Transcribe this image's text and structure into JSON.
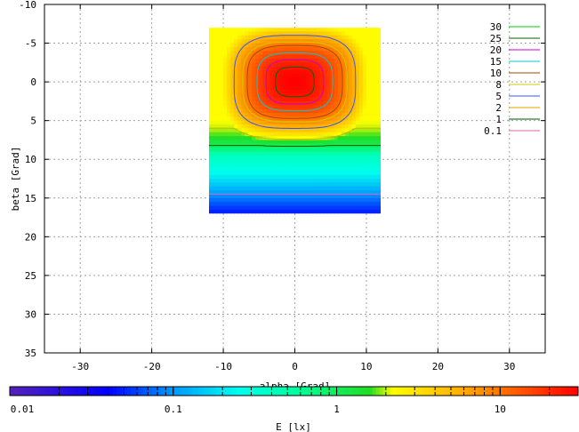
{
  "chart_data": {
    "type": "heatmap",
    "title": "",
    "xlabel": "alpha [Grad]",
    "ylabel": "beta [Grad]",
    "xlim": [
      -35,
      35
    ],
    "ylim": [
      35,
      -10
    ],
    "x_ticks": [
      -30,
      -20,
      -10,
      0,
      10,
      20,
      30
    ],
    "y_ticks": [
      -10,
      -5,
      0,
      5,
      10,
      15,
      20,
      25,
      30,
      35
    ],
    "grid": true,
    "legend_position": "top-right",
    "data_extent": {
      "alpha": [
        -12,
        12
      ],
      "beta": [
        -7,
        17
      ]
    },
    "peak": {
      "alpha": 0,
      "beta": 0,
      "value": 30
    },
    "contour_levels": [
      {
        "label": "30",
        "value": 30,
        "color": "#00cc00"
      },
      {
        "label": "25",
        "value": 25,
        "color": "#006600"
      },
      {
        "label": "20",
        "value": 20,
        "color": "#cc00cc"
      },
      {
        "label": "15",
        "value": 15,
        "color": "#00cccc"
      },
      {
        "label": "10",
        "value": 10,
        "color": "#aa4400"
      },
      {
        "label": "8",
        "value": 8,
        "color": "#cccc00"
      },
      {
        "label": "5",
        "value": 5,
        "color": "#3355ff"
      },
      {
        "label": "2",
        "value": 2,
        "color": "#ddaa00"
      },
      {
        "label": "1",
        "value": 1,
        "color": "#005500"
      },
      {
        "label": "0.1",
        "value": 0.1,
        "color": "#dd66bb"
      }
    ],
    "colorbar": {
      "label": "E [lx]",
      "scale": "log",
      "range": [
        0.01,
        30
      ],
      "ticks": [
        {
          "label": "0.01",
          "value": 0.01
        },
        {
          "label": "0.1",
          "value": 0.1
        },
        {
          "label": "1",
          "value": 1
        },
        {
          "label": "10",
          "value": 10
        }
      ],
      "colors": [
        {
          "value": 0.01,
          "color": "#5522bb"
        },
        {
          "value": 0.04,
          "color": "#0000ff"
        },
        {
          "value": 0.1,
          "color": "#0099ff"
        },
        {
          "value": 0.25,
          "color": "#00ffee"
        },
        {
          "value": 0.6,
          "color": "#00ff99"
        },
        {
          "value": 1.6,
          "color": "#22dd22"
        },
        {
          "value": 2.2,
          "color": "#ffff00"
        },
        {
          "value": 6,
          "color": "#ffaa00"
        },
        {
          "value": 30,
          "color": "#ff0000"
        }
      ]
    }
  }
}
